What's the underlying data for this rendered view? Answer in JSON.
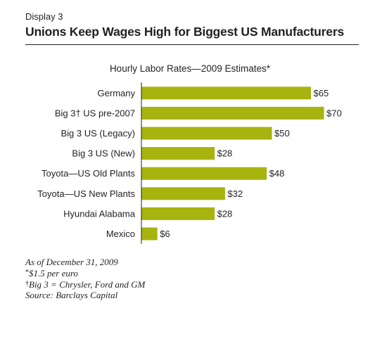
{
  "header": {
    "display_label": "Display 3",
    "title": "Unions Keep Wages High for Biggest US Manufacturers"
  },
  "chart_data": {
    "type": "bar",
    "orientation": "horizontal",
    "title": "Hourly Labor Rates—2009 Estimates*",
    "categories": [
      "Germany",
      "Big 3† US pre-2007",
      "Big 3 US (Legacy)",
      "Big 3 US (New)",
      "Toyota—US Old Plants",
      "Toyota—US New Plants",
      "Hyundai Alabama",
      "Mexico"
    ],
    "values": [
      65,
      70,
      50,
      28,
      48,
      32,
      28,
      6
    ],
    "value_labels": [
      "$65",
      "$70",
      "$50",
      "$28",
      "$48",
      "$32",
      "$28",
      "$6"
    ],
    "xlim": [
      0,
      70
    ],
    "grid": false,
    "bar_color": "#a7b30f"
  },
  "notes": {
    "date": "As of December 31, 2009",
    "star_mark": "*",
    "star_note": "$1.5 per euro",
    "dagger_mark": "†",
    "dagger_note": "Big 3 = Chrysler, Ford and GM",
    "source": "Source: Barclays Capital"
  }
}
